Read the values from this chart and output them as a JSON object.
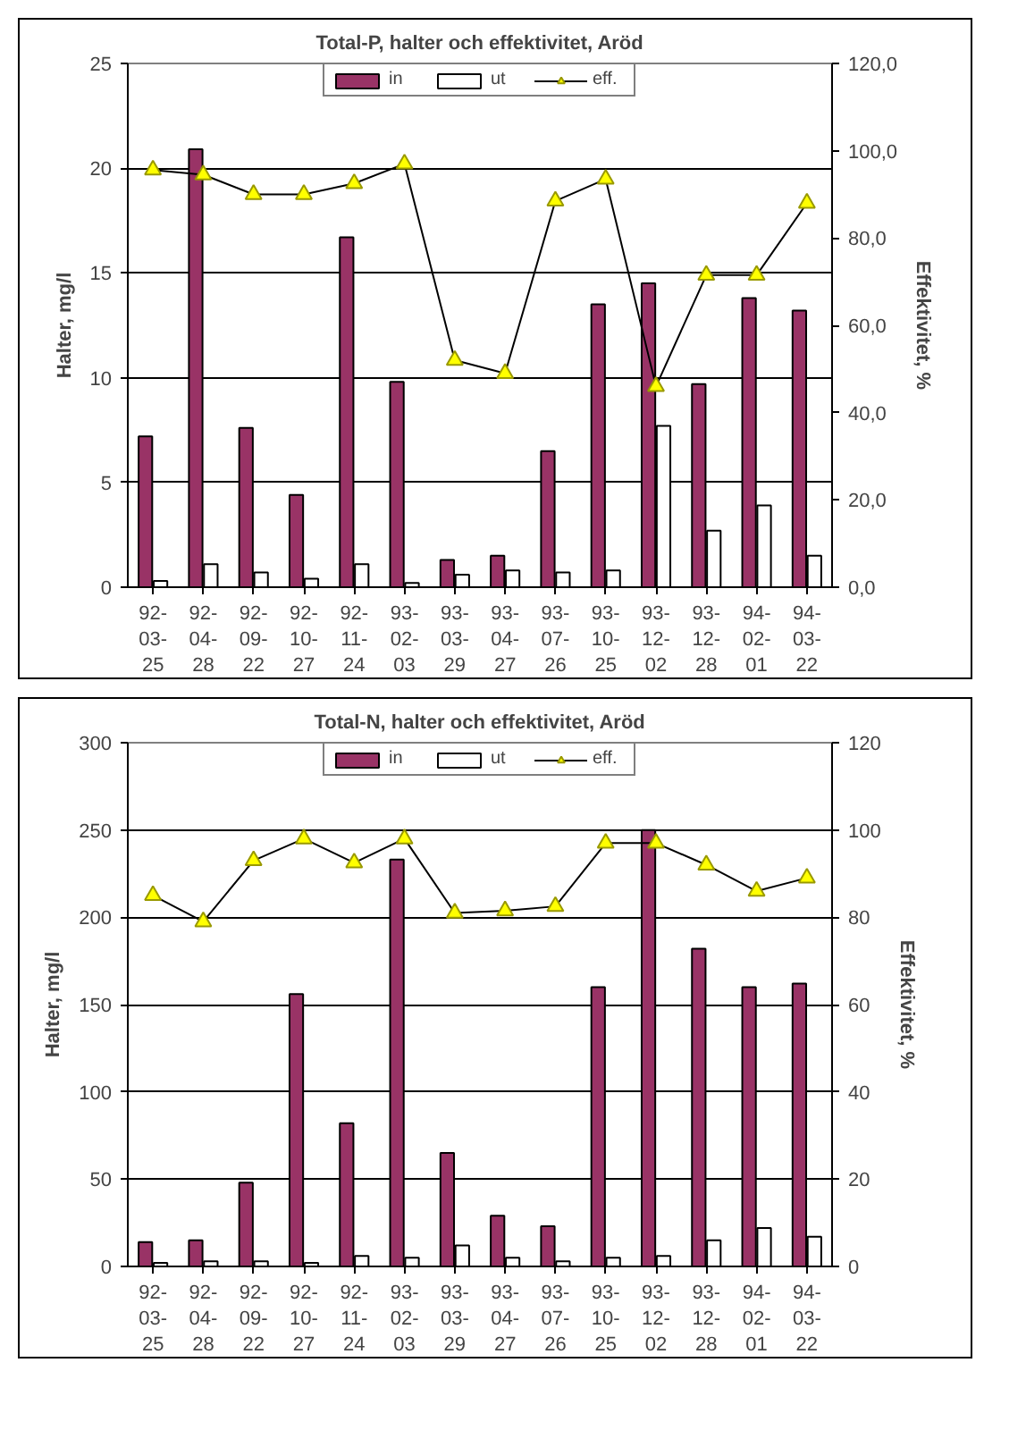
{
  "chart_data": [
    {
      "type": "bar",
      "title": "Total-P, halter och effektivitet, Aröd",
      "ylabel": "Halter, mg/l",
      "y2label": "Effektivitet, %",
      "categories": [
        "92-03-25",
        "92-04-28",
        "92-09-22",
        "92-10-27",
        "92-11-24",
        "93-02-03",
        "93-03-29",
        "93-04-27",
        "93-07-26",
        "93-10-25",
        "93-12-02",
        "93-12-28",
        "94-02-01",
        "94-03-22"
      ],
      "series": [
        {
          "name": "in",
          "color": "#993366",
          "values": [
            7.2,
            20.9,
            7.6,
            4.4,
            16.7,
            9.8,
            1.3,
            1.5,
            6.5,
            13.5,
            14.5,
            9.7,
            13.8,
            13.2
          ]
        },
        {
          "name": "ut",
          "color": "#ffffff",
          "values": [
            0.3,
            1.1,
            0.7,
            0.4,
            1.1,
            0.2,
            0.6,
            0.8,
            0.7,
            0.8,
            7.7,
            2.7,
            3.9,
            1.5
          ]
        },
        {
          "name": "eff.",
          "type": "line",
          "axis": "y2",
          "color": "#000000",
          "marker": "triangle",
          "values": [
            95.6,
            94.5,
            90,
            90,
            92.5,
            97,
            52,
            49,
            88.5,
            93.5,
            46,
            71.5,
            71.5,
            88
          ]
        }
      ],
      "ylim": [
        0,
        25
      ],
      "yticks": [
        0,
        5,
        10,
        15,
        20,
        25
      ],
      "y2lim": [
        0,
        120
      ],
      "y2ticks": [
        {
          "value": 0,
          "label": "0,0"
        },
        {
          "value": 20,
          "label": "20,0"
        },
        {
          "value": 40,
          "label": "40,0"
        },
        {
          "value": 60,
          "label": "60,0"
        },
        {
          "value": 80,
          "label": "80,0"
        },
        {
          "value": 100,
          "label": "100,0"
        },
        {
          "value": 120,
          "label": "120,0"
        }
      ],
      "grid": "y",
      "legend": "top"
    },
    {
      "type": "bar",
      "title": "Total-N, halter och effektivitet, Aröd",
      "ylabel": "Halter, mg/l",
      "y2label": "Effektivitet, %",
      "categories": [
        "92-03-25",
        "92-04-28",
        "92-09-22",
        "92-10-27",
        "92-11-24",
        "93-02-03",
        "93-03-29",
        "93-04-27",
        "93-07-26",
        "93-10-25",
        "93-12-02",
        "93-12-28",
        "94-02-01",
        "94-03-22"
      ],
      "series": [
        {
          "name": "in",
          "color": "#993366",
          "values": [
            14,
            15,
            48,
            156,
            82,
            233,
            65,
            29,
            23,
            160,
            250,
            182,
            160,
            162
          ]
        },
        {
          "name": "ut",
          "color": "#ffffff",
          "values": [
            2,
            3,
            3,
            2,
            6,
            5,
            12,
            5,
            3,
            5,
            6,
            15,
            22,
            17
          ]
        },
        {
          "name": "eff.",
          "type": "line",
          "axis": "y2",
          "color": "#000000",
          "marker": "triangle",
          "values": [
            85,
            79,
            93,
            98,
            92.5,
            98,
            81,
            81.5,
            82.5,
            97,
            97,
            92,
            86,
            89
          ]
        }
      ],
      "ylim": [
        0,
        300
      ],
      "yticks": [
        0,
        50,
        100,
        150,
        200,
        250,
        300
      ],
      "y2lim": [
        0,
        120
      ],
      "y2ticks": [
        0,
        20,
        40,
        60,
        80,
        100,
        120
      ],
      "grid": "y",
      "legend": "top"
    }
  ]
}
